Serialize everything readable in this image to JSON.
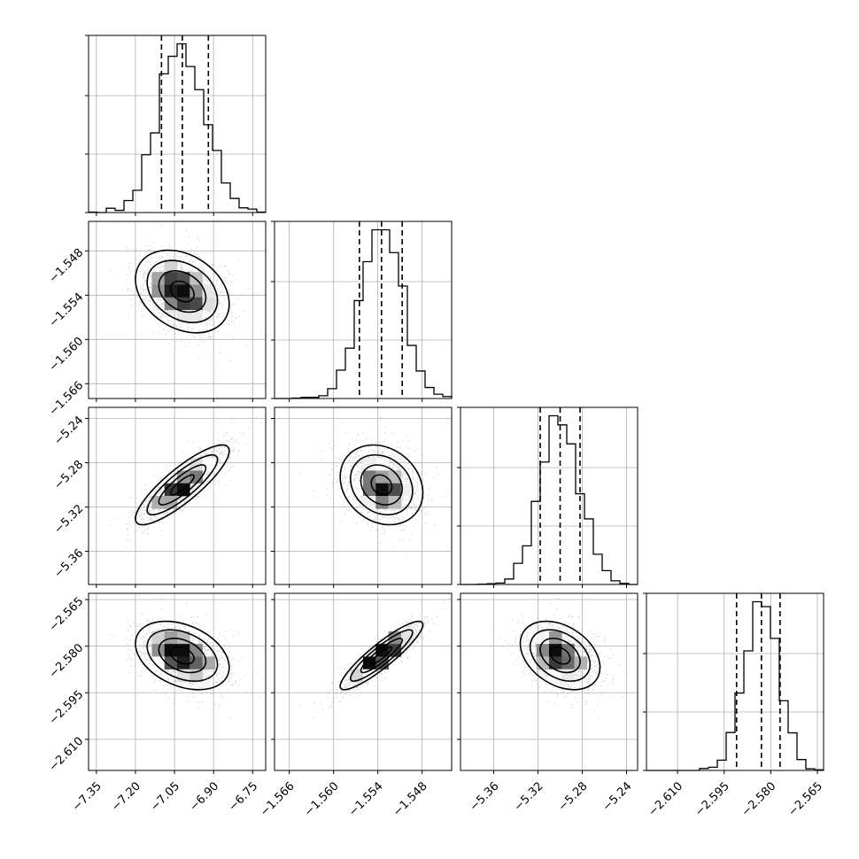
{
  "chart_data": {
    "type": "corner",
    "parameters": [
      {
        "range": [
          -7.38,
          -6.7
        ],
        "ticks": [
          -7.35,
          -7.2,
          -7.05,
          -6.9,
          -6.75
        ],
        "tick_labels": [
          "−7.35",
          "−7.20",
          "−7.05",
          "−6.90",
          "−6.75"
        ],
        "mean": -7.02,
        "sigma": 0.09,
        "quantiles": [
          -7.1,
          -7.02,
          -6.92
        ]
      },
      {
        "range": [
          -1.568,
          -1.544
        ],
        "ticks": [
          -1.566,
          -1.56,
          -1.554,
          -1.548
        ],
        "tick_labels": [
          "−1.566",
          "−1.560",
          "−1.554",
          "−1.548"
        ],
        "mean": -1.5535,
        "sigma": 0.0028,
        "quantiles": [
          -1.5565,
          -1.5535,
          -1.5507
        ]
      },
      {
        "range": [
          -5.39,
          -5.23
        ],
        "ticks": [
          -5.36,
          -5.32,
          -5.28,
          -5.24
        ],
        "tick_labels": [
          "−5.36",
          "−5.32",
          "−5.28",
          "−5.24"
        ],
        "mean": -5.3,
        "sigma": 0.018,
        "quantiles": [
          -5.318,
          -5.3,
          -5.282
        ]
      },
      {
        "range": [
          -2.62,
          -2.563
        ],
        "ticks": [
          -2.61,
          -2.595,
          -2.58,
          -2.565
        ],
        "tick_labels": [
          "−2.610",
          "−2.595",
          "−2.580",
          "−2.565"
        ],
        "mean": -2.583,
        "sigma": 0.0055,
        "quantiles": [
          -2.591,
          -2.583,
          -2.577
        ]
      }
    ],
    "correlations": [
      [
        1,
        -0.3,
        0.85,
        -0.35
      ],
      [
        -0.3,
        1,
        -0.2,
        0.9
      ],
      [
        0.85,
        -0.2,
        1,
        -0.35
      ],
      [
        -0.35,
        0.9,
        -0.35,
        1
      ]
    ],
    "histogram_bins": 20,
    "grid": true
  }
}
